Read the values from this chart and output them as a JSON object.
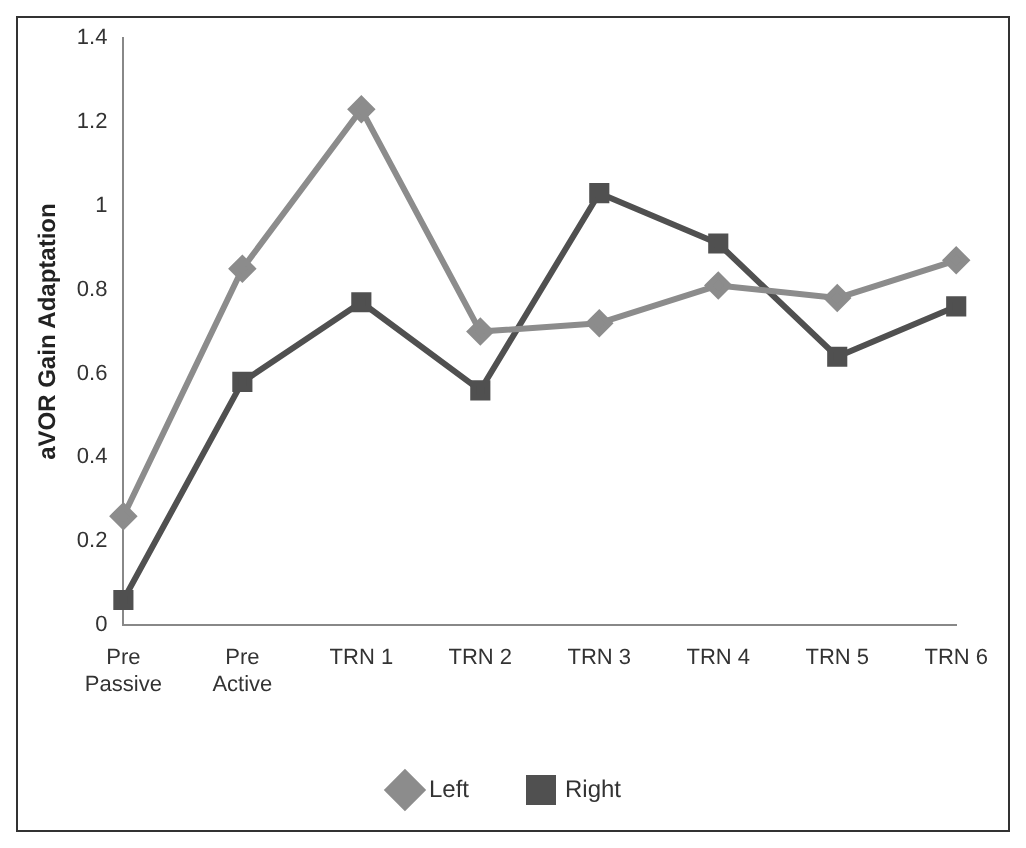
{
  "chart_data": {
    "type": "line",
    "ylabel": "aVOR Gain Adaptation",
    "categories": [
      "Pre Passive",
      "Pre Active",
      "TRN 1",
      "TRN 2",
      "TRN 3",
      "TRN 4",
      "TRN 5",
      "TRN 6"
    ],
    "series": [
      {
        "name": "Left",
        "color": "#8c8c8c",
        "marker": "diamond",
        "values": [
          0.26,
          0.85,
          1.23,
          0.7,
          0.72,
          0.81,
          0.78,
          0.87
        ]
      },
      {
        "name": "Right",
        "color": "#505050",
        "marker": "square",
        "values": [
          0.06,
          0.58,
          0.77,
          0.56,
          1.03,
          0.91,
          0.64,
          0.76
        ]
      }
    ],
    "ylim": [
      0,
      1.4
    ],
    "yticks": [
      0,
      0.2,
      0.4,
      0.6,
      0.8,
      1,
      1.2,
      1.4
    ],
    "grid": false,
    "legend": "bottom"
  }
}
